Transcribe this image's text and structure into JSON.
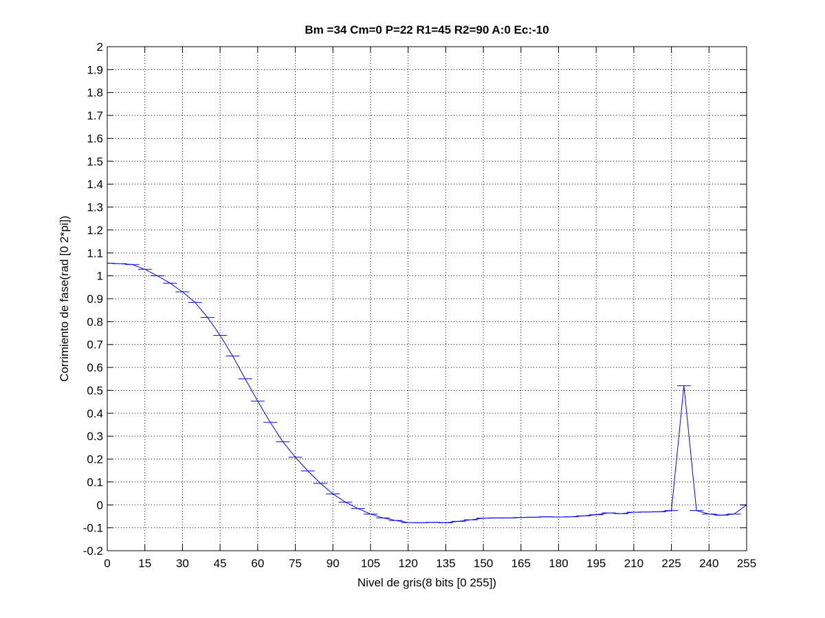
{
  "chart_data": {
    "type": "line",
    "title": "Bm =34  Cm=0  P=22  R1=45  R2=90  A:0  Ec:-10",
    "xlabel": "Nivel de gris(8 bits [0 255])",
    "ylabel": "Corrimiento de fase(rad [0 2*pi])",
    "xlim": [
      0,
      255
    ],
    "ylim": [
      -0.2,
      2
    ],
    "xticks": [
      0,
      15,
      30,
      45,
      60,
      75,
      90,
      105,
      120,
      135,
      150,
      165,
      180,
      195,
      210,
      225,
      240,
      255
    ],
    "yticks": [
      -0.2,
      -0.1,
      0,
      0.1,
      0.2,
      0.3,
      0.4,
      0.5,
      0.6,
      0.7,
      0.8,
      0.9,
      1,
      1.1,
      1.2,
      1.3,
      1.4,
      1.5,
      1.6,
      1.7,
      1.8,
      1.9,
      2
    ],
    "xtick_labels": [
      "0",
      "15",
      "30",
      "45",
      "60",
      "75",
      "90",
      "105",
      "120",
      "135",
      "150",
      "165",
      "180",
      "195",
      "210",
      "225",
      "240",
      "255"
    ],
    "ytick_labels": [
      "-0.2",
      "-0.1",
      "0",
      "0.1",
      "0.2",
      "0.3",
      "0.4",
      "0.5",
      "0.6",
      "0.7",
      "0.8",
      "0.9",
      "1",
      "1.1",
      "1.2",
      "1.3",
      "1.4",
      "1.5",
      "1.6",
      "1.7",
      "1.8",
      "1.9",
      "2"
    ],
    "grid": true,
    "series": [
      {
        "color": "#0000ff",
        "x": [
          0,
          5,
          10,
          15,
          20,
          25,
          30,
          35,
          40,
          45,
          50,
          55,
          60,
          65,
          70,
          75,
          80,
          85,
          90,
          95,
          100,
          105,
          110,
          115,
          120,
          125,
          130,
          135,
          140,
          145,
          150,
          155,
          160,
          165,
          170,
          175,
          180,
          185,
          190,
          195,
          200,
          205,
          210,
          215,
          220,
          225,
          230,
          235,
          240,
          245,
          250,
          255
        ],
        "y": [
          1.055,
          1.053,
          1.049,
          1.028,
          1.0,
          0.968,
          0.93,
          0.884,
          0.818,
          0.74,
          0.65,
          0.55,
          0.453,
          0.36,
          0.276,
          0.208,
          0.148,
          0.094,
          0.048,
          0.012,
          -0.016,
          -0.04,
          -0.057,
          -0.068,
          -0.077,
          -0.078,
          -0.076,
          -0.078,
          -0.072,
          -0.065,
          -0.058,
          -0.057,
          -0.057,
          -0.055,
          -0.054,
          -0.052,
          -0.053,
          -0.052,
          -0.048,
          -0.043,
          -0.035,
          -0.038,
          -0.032,
          -0.031,
          -0.03,
          -0.025,
          0.52,
          -0.025,
          -0.04,
          -0.045,
          -0.04,
          0.0
        ]
      }
    ]
  }
}
